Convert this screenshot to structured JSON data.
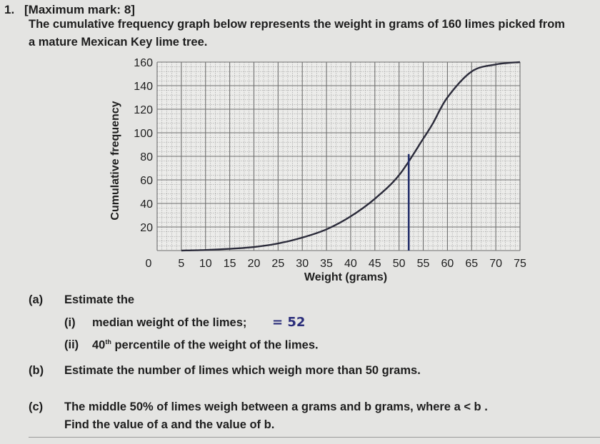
{
  "question": {
    "number": "1.",
    "max_mark": "[Maximum mark: 8]",
    "intro_line1": "The cumulative frequency graph below represents the weight in grams of 160 limes picked from",
    "intro_line2": "a mature Mexican Key lime tree."
  },
  "parts": {
    "a_label": "(a)",
    "a_text": "Estimate the",
    "a_i_label": "(i)",
    "a_i_text": "median weight of the limes;",
    "a_i_answer": "= 52",
    "a_ii_label": "(ii)",
    "a_ii_text_pre": "40",
    "a_ii_sup": "th",
    "a_ii_text_post": "percentile of the weight of the limes.",
    "b_label": "(b)",
    "b_text": "Estimate the number of limes which weigh more than 50 grams.",
    "c_label": "(c)",
    "c_text": "The middle 50% of limes weigh between a grams and b grams, where a < b .",
    "c_text2": "Find the value of a and the value of b."
  },
  "chart_data": {
    "type": "line",
    "title": "",
    "xlabel": "Weight (grams)",
    "ylabel": "Cumulative frequency",
    "xlim": [
      0,
      75
    ],
    "ylim": [
      0,
      160
    ],
    "x_ticks": [
      0,
      5,
      10,
      15,
      20,
      25,
      30,
      35,
      40,
      45,
      50,
      55,
      60,
      65,
      70,
      75
    ],
    "y_ticks": [
      0,
      20,
      40,
      60,
      80,
      100,
      120,
      140,
      160
    ],
    "x_tick_labels": [
      "0",
      "5",
      "10",
      "15",
      "20",
      "25",
      "30",
      "35",
      "40",
      "45",
      "50",
      "55",
      "60",
      "65",
      "70",
      "75"
    ],
    "y_tick_labels": [
      "0",
      "20",
      "40",
      "60",
      "80",
      "100",
      "120",
      "140",
      "160"
    ],
    "grid": true,
    "series": [
      {
        "x": [
          5,
          10,
          15,
          20,
          25,
          30,
          35,
          40,
          45,
          50,
          55,
          57,
          60,
          65,
          70,
          75
        ],
        "y": [
          0,
          0.5,
          1.5,
          3,
          6,
          11,
          18,
          29,
          44,
          64,
          95,
          108,
          130,
          152,
          158,
          160
        ]
      }
    ],
    "annotations": [
      {
        "type": "vertical-line",
        "x": 52,
        "y_from": 0,
        "y_to": 82
      }
    ],
    "colors": {
      "grid": "#8a8a8a",
      "curve": "#2b2b3a",
      "annotation": "#25306a"
    }
  }
}
